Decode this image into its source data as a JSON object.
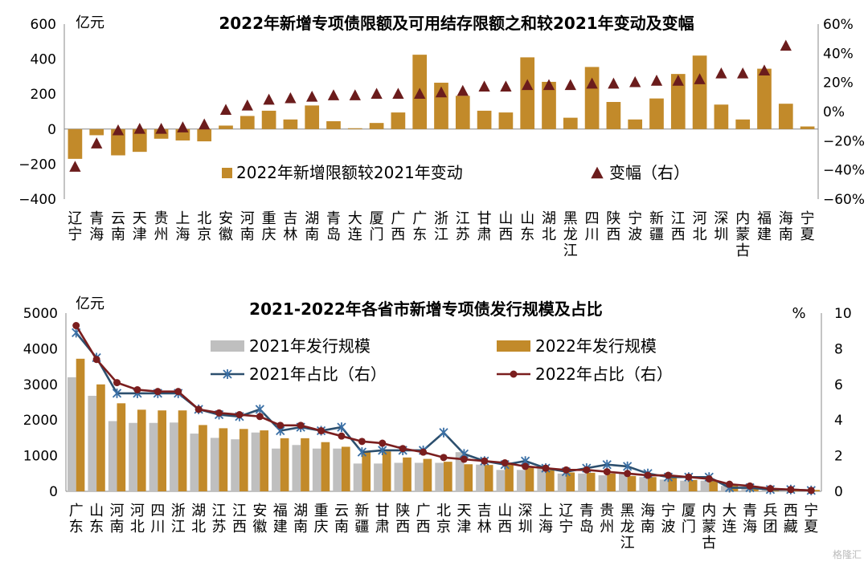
{
  "watermark": "格隆汇",
  "chart_data": [
    {
      "type": "bar",
      "title": "2022年新增专项债限额及可用结存限额之和较2021年变动及变幅",
      "unit_left": "亿元",
      "ylim": [
        -400,
        600
      ],
      "y_ticks": [
        -400,
        -200,
        0,
        200,
        400,
        600
      ],
      "y2lim": [
        -60,
        60
      ],
      "y2_ticks": [
        "-60%",
        "-40%",
        "-20%",
        "0%",
        "20%",
        "40%",
        "60%"
      ],
      "categories": [
        "辽宁",
        "青海",
        "云南",
        "天津",
        "贵州",
        "上海",
        "北京",
        "安徽",
        "河南",
        "重庆",
        "吉林",
        "湖南",
        "青岛",
        "大连",
        "厦门",
        "广西",
        "广东",
        "浙江",
        "江苏",
        "甘肃",
        "山西",
        "山东",
        "湖北",
        "黑龙江",
        "四川",
        "陕西",
        "宁波",
        "新疆",
        "江西",
        "河北",
        "深圳",
        "内蒙古",
        "福建",
        "海南",
        "宁夏"
      ],
      "series": [
        {
          "name": "2022年新增限额较2021年变动",
          "color": "#C28A2A",
          "values": [
            -170,
            -35,
            -150,
            -130,
            -55,
            -65,
            -70,
            20,
            75,
            105,
            55,
            135,
            45,
            5,
            35,
            95,
            425,
            265,
            190,
            105,
            95,
            410,
            270,
            65,
            355,
            155,
            55,
            175,
            315,
            420,
            140,
            55,
            345,
            145,
            15
          ]
        },
        {
          "name": "变幅（右）",
          "color": "#6B1C1C",
          "values": [
            -38,
            -22,
            -13,
            -12,
            -12,
            -11,
            -9,
            1,
            4,
            8,
            9,
            10,
            11,
            11,
            12,
            12,
            12,
            13,
            14,
            17,
            17,
            18,
            18,
            18,
            19,
            19,
            20,
            21,
            21,
            22,
            26,
            26,
            28,
            45,
            null
          ]
        }
      ],
      "legend": [
        "2022年新增限额较2021年变动",
        "变幅（右）"
      ]
    },
    {
      "type": "bar",
      "title": "2021-2022年各省市新增专项债发行规模及占比",
      "unit_left": "亿元",
      "unit_right": "%",
      "ylim": [
        0,
        5000
      ],
      "y_ticks": [
        0,
        1000,
        2000,
        3000,
        4000,
        5000
      ],
      "y2lim": [
        0,
        10
      ],
      "y2_ticks": [
        0,
        2,
        4,
        6,
        8,
        10
      ],
      "categories": [
        "广东",
        "山东",
        "河南",
        "河北",
        "四川",
        "浙江",
        "湖北",
        "江苏",
        "江西",
        "安徽",
        "福建",
        "湖南",
        "重庆",
        "云南",
        "新疆",
        "甘肃",
        "陕西",
        "广西",
        "北京",
        "天津",
        "吉林",
        "山西",
        "深圳",
        "上海",
        "辽宁",
        "青岛",
        "贵州",
        "黑龙江",
        "海南",
        "宁波",
        "厦门",
        "内蒙古",
        "大连",
        "青海",
        "兵团",
        "西藏",
        "宁夏"
      ],
      "series": [
        {
          "name": "2021年发行规模",
          "color": "#BFBFBF",
          "values": [
            3200,
            2680,
            1970,
            1920,
            1920,
            1930,
            1620,
            1500,
            1460,
            1650,
            1200,
            1300,
            1200,
            1200,
            780,
            780,
            800,
            800,
            800,
            1100,
            750,
            600,
            600,
            700,
            500,
            500,
            450,
            500,
            400,
            330,
            300,
            300,
            150,
            120,
            60,
            60,
            30
          ]
        },
        {
          "name": "2022年发行规模",
          "color": "#C28A2A",
          "values": [
            3720,
            3000,
            2470,
            2290,
            2270,
            2270,
            1860,
            1770,
            1750,
            1710,
            1490,
            1490,
            1380,
            1250,
            1130,
            1120,
            950,
            910,
            830,
            760,
            740,
            750,
            660,
            600,
            530,
            520,
            500,
            430,
            400,
            380,
            320,
            300,
            180,
            150,
            70,
            70,
            40
          ]
        },
        {
          "name": "2021年占比（右）",
          "color": "#2C4F6E",
          "values": [
            8.9,
            7.5,
            5.5,
            5.5,
            5.5,
            5.5,
            4.6,
            4.3,
            4.2,
            4.6,
            3.4,
            3.6,
            3.4,
            3.6,
            2.2,
            2.3,
            2.3,
            2.3,
            3.3,
            2.1,
            1.7,
            1.5,
            1.7,
            1.3,
            1.1,
            1.3,
            1.5,
            1.4,
            1.0,
            0.8,
            0.8,
            0.8,
            0.2,
            0.2,
            0.1,
            0.1,
            0.05
          ]
        },
        {
          "name": "2022年占比（右）",
          "color": "#7A1E1E",
          "values": [
            9.3,
            7.4,
            6.1,
            5.7,
            5.6,
            5.6,
            4.6,
            4.4,
            4.3,
            4.2,
            3.7,
            3.7,
            3.4,
            3.1,
            2.8,
            2.7,
            2.4,
            2.2,
            1.9,
            1.8,
            1.7,
            1.6,
            1.4,
            1.3,
            1.2,
            1.2,
            1.1,
            1.0,
            0.9,
            0.9,
            0.8,
            0.7,
            0.4,
            0.3,
            0.15,
            0.1,
            0.05
          ]
        }
      ],
      "legend": [
        "2021年发行规模",
        "2022年发行规模",
        "2021年占比（右）",
        "2022年占比（右）"
      ]
    }
  ]
}
